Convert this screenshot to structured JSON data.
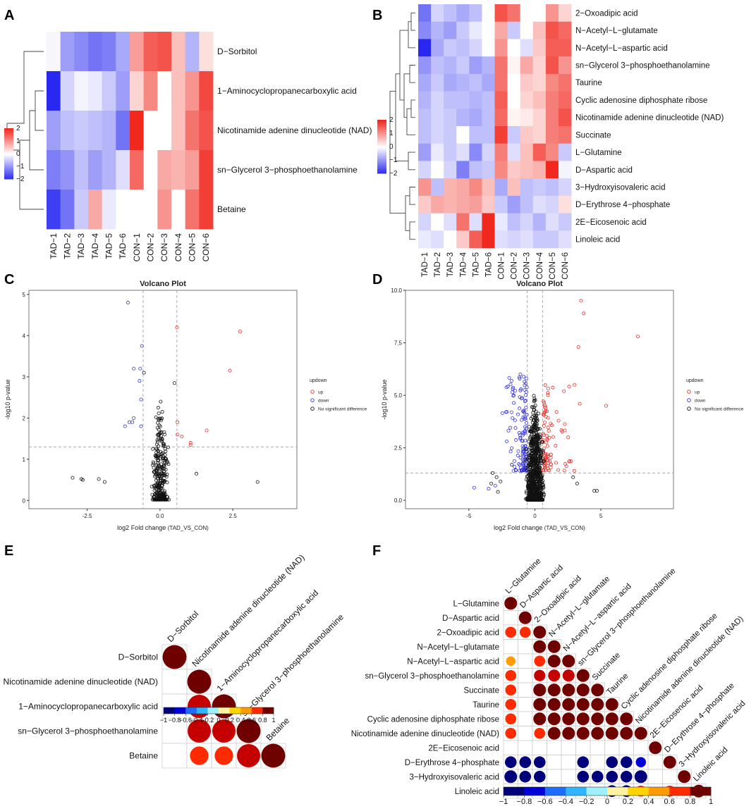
{
  "panel_labels": [
    "A",
    "B",
    "C",
    "D",
    "E",
    "F"
  ],
  "chart_data": [
    {
      "id": "A",
      "type": "heatmap",
      "columns": [
        "TAD−1",
        "TAD−2",
        "TAD−3",
        "TAD−4",
        "TAD−5",
        "TAD−6",
        "CON−1",
        "CON−2",
        "CON−3",
        "CON−4",
        "CON−5",
        "CON−6"
      ],
      "rows": [
        "D−Sorbitol",
        "1−Aminocyclopropanecarboxylic acid",
        "Nicotinamide adenine dinucleotide (NAD)",
        "sn−Glycerol 3−phosphoethanolamine",
        "Betaine"
      ],
      "values": [
        [
          null,
          -0.9,
          -1.1,
          -1.3,
          -1.2,
          -0.8,
          0.9,
          1.5,
          1.6,
          0.6,
          -0.7,
          0.3
        ],
        [
          -2.2,
          -0.4,
          -0.1,
          -0.2,
          -0.5,
          -0.9,
          0.4,
          1.1,
          0.0,
          0.6,
          1.0,
          1.7
        ],
        [
          -0.9,
          -0.6,
          -0.5,
          -0.6,
          -0.7,
          -1.3,
          2.0,
          0.0,
          0.0,
          0.6,
          1.3,
          1.6
        ],
        [
          -1.2,
          -1.0,
          -0.6,
          -0.9,
          -0.7,
          -0.3,
          1.4,
          0.0,
          0.8,
          0.7,
          0.9,
          1.8
        ],
        [
          -1.8,
          -1.3,
          -0.5,
          0.8,
          -0.2,
          0.0,
          0.0,
          0.0,
          1.0,
          0.0,
          1.3,
          1.8
        ]
      ],
      "legend_ticks": [
        "2",
        "1",
        "0",
        "−1",
        "−2"
      ],
      "range": [
        -2,
        2
      ]
    },
    {
      "id": "B",
      "type": "heatmap",
      "columns": [
        "TAD−1",
        "TAD−2",
        "TAD−3",
        "TAD−4",
        "TAD−5",
        "TAD−6",
        "CON−1",
        "CON−2",
        "CON−3",
        "CON−4",
        "CON−5",
        "CON−6"
      ],
      "rows": [
        "2−Oxoadipic acid",
        "N−Acetyl−L−glutamate",
        "N−Acetyl−L−aspartic acid",
        "sn−Glycerol 3−phosphoethanolamine",
        "Taurine",
        "Cyclic adenosine diphosphate ribose",
        "Nicotinamide adenine dinucleotide (NAD)",
        "Succinate",
        "L−Glutamine",
        "D−Aspartic acid",
        "3−Hydroxyisovaleric acid",
        "D−Erythrose 4−phosphate",
        "2E−Eicosenoic acid",
        "Linoleic acid"
      ],
      "values": [
        [
          -1.3,
          -0.4,
          -0.6,
          -0.8,
          -0.6,
          0.0,
          1.6,
          1.3,
          0.0,
          0.0,
          1.0,
          0.4
        ],
        [
          -1.1,
          -0.7,
          -0.9,
          -0.5,
          -0.2,
          0.0,
          0.8,
          -0.5,
          0.0,
          0.6,
          1.6,
          1.4
        ],
        [
          -2.0,
          -0.8,
          -0.5,
          -0.6,
          -0.4,
          0.0,
          1.0,
          0.0,
          -0.3,
          0.5,
          1.5,
          1.5
        ],
        [
          -1.0,
          -0.6,
          -0.7,
          -0.5,
          -0.9,
          -0.7,
          1.3,
          0.1,
          0.8,
          0.4,
          1.6,
          1.0
        ],
        [
          -0.8,
          -0.5,
          -0.8,
          -0.7,
          -0.6,
          -0.8,
          1.3,
          0.0,
          0.5,
          0.4,
          1.1,
          1.3
        ],
        [
          -0.7,
          -0.4,
          -0.6,
          -0.6,
          -0.7,
          -0.6,
          1.5,
          0.0,
          0.4,
          0.6,
          1.2,
          1.4
        ],
        [
          -0.6,
          -0.4,
          -0.5,
          -0.7,
          -0.8,
          -0.6,
          1.4,
          0.1,
          0.2,
          0.4,
          1.2,
          1.6
        ],
        [
          -0.6,
          -0.4,
          -0.5,
          0.0,
          -0.6,
          -0.6,
          1.8,
          -0.5,
          0.5,
          0.4,
          1.2,
          1.3
        ],
        [
          -0.9,
          -0.2,
          -0.5,
          -0.3,
          -1.1,
          -0.4,
          1.2,
          -0.3,
          0.6,
          1.5,
          1.1,
          -0.5
        ],
        [
          -0.4,
          0.0,
          -0.4,
          -1.2,
          -0.6,
          -0.5,
          1.1,
          0.5,
          0.6,
          0.7,
          2.0,
          -0.1
        ],
        [
          1.0,
          -0.6,
          0.7,
          0.8,
          1.1,
          0.6,
          -0.8,
          0.6,
          -0.6,
          -0.5,
          -0.6,
          -0.4
        ],
        [
          0.5,
          0.8,
          0.7,
          0.8,
          0.9,
          0.5,
          -0.5,
          -0.9,
          -0.6,
          -0.3,
          -0.4,
          0.3
        ],
        [
          -0.4,
          0.0,
          -0.3,
          1.3,
          -0.3,
          2.0,
          -0.2,
          -0.6,
          -0.4,
          -0.7,
          -0.3,
          -0.5
        ],
        [
          -0.2,
          -0.3,
          0.0,
          0.5,
          1.5,
          2.0,
          -0.3,
          -0.4,
          -0.3,
          -0.5,
          -0.5,
          -0.3
        ]
      ],
      "legend_ticks": [
        "2",
        "1",
        "0",
        "−1",
        "−2"
      ],
      "range": [
        -2,
        2
      ]
    },
    {
      "id": "C",
      "type": "scatter",
      "title": "Volcano Plot",
      "xlabel": "log2 Fold change",
      "xlabel_suffix": "(TAD_VS_CON)",
      "ylabel": "-log10 p-value",
      "xlim": [
        -4.5,
        4.7
      ],
      "ylim": [
        -0.2,
        5.1
      ],
      "xticks": [
        -2.5,
        0.0,
        2.5
      ],
      "xtick_labels": [
        "-2.5",
        "0.0",
        "2.5"
      ],
      "yticks": [
        0,
        1,
        2,
        3,
        4,
        5
      ],
      "ytick_labels": [
        "0",
        "1",
        "2",
        "3",
        "4",
        "5"
      ],
      "vlines": [
        -0.58,
        0.58
      ],
      "hline": 1.3,
      "legend": {
        "title": "updown",
        "entries": [
          "up",
          "down",
          "No significant difference"
        ]
      },
      "series": [
        {
          "name": "up",
          "color": "#e8302a",
          "points": [
            [
              0.58,
              4.2
            ],
            [
              2.75,
              4.1
            ],
            [
              2.4,
              3.15
            ],
            [
              0.6,
              1.9
            ],
            [
              1.6,
              1.7
            ],
            [
              0.6,
              1.6
            ],
            [
              0.75,
              1.55
            ],
            [
              1.05,
              1.4
            ],
            [
              1.05,
              1.35
            ]
          ]
        },
        {
          "name": "down",
          "color": "#3535d8",
          "points": [
            [
              -1.1,
              4.8
            ],
            [
              -0.62,
              3.75
            ],
            [
              -0.9,
              3.2
            ],
            [
              -0.68,
              3.2
            ],
            [
              -0.7,
              2.9
            ],
            [
              -0.65,
              2.45
            ],
            [
              -0.9,
              2.0
            ],
            [
              -1.05,
              1.9
            ],
            [
              -0.95,
              1.9
            ],
            [
              -0.65,
              1.8
            ],
            [
              -1.2,
              1.8
            ]
          ]
        },
        {
          "name": "No significant difference",
          "color": "#111111",
          "count": 320,
          "x_spread": 0.3,
          "y_max": 2.6,
          "extra": [
            [
              -3.0,
              0.55
            ],
            [
              -2.7,
              0.52
            ],
            [
              -2.65,
              0.5
            ],
            [
              -2.1,
              0.52
            ],
            [
              -1.9,
              0.45
            ],
            [
              3.35,
              0.45
            ],
            [
              1.25,
              0.65
            ],
            [
              0.5,
              2.85
            ],
            [
              -0.55,
              3.1
            ]
          ]
        }
      ]
    },
    {
      "id": "D",
      "type": "scatter",
      "title": "Volcano Plot",
      "xlabel": "log2 Fold change",
      "xlabel_suffix": "(TAD_VS_CON)",
      "ylabel": "-log10 p-value",
      "xlim": [
        -9.8,
        10.5
      ],
      "ylim": [
        -0.4,
        10.0
      ],
      "xticks": [
        -5,
        0,
        5
      ],
      "xtick_labels": [
        "-5",
        "0",
        "5"
      ],
      "yticks": [
        0,
        2.5,
        5,
        7.5,
        10
      ],
      "ytick_labels": [
        "0.0",
        "2.5",
        "5.0",
        "7.5",
        "10.0"
      ],
      "vlines": [
        -0.58,
        0.58
      ],
      "hline": 1.3,
      "legend": {
        "title": "updown",
        "entries": [
          "up",
          "down",
          "No significant difference"
        ]
      },
      "series": [
        {
          "name": "up",
          "color": "#e8302a",
          "count": 90,
          "x_range": [
            0.6,
            3.2
          ],
          "y_range": [
            1.4,
            5.6
          ],
          "extra": [
            [
              3.5,
              9.5
            ],
            [
              3.7,
              8.9
            ],
            [
              3.3,
              7.3
            ],
            [
              7.8,
              7.8
            ],
            [
              5.4,
              4.5
            ],
            [
              3.4,
              4.6
            ],
            [
              3.0,
              5.5
            ],
            [
              2.2,
              5.2
            ]
          ]
        },
        {
          "name": "down",
          "color": "#3535d8",
          "count": 130,
          "x_range": [
            -2.5,
            -0.6
          ],
          "y_range": [
            1.4,
            5.9
          ],
          "extra": [
            [
              -4.6,
              0.6
            ],
            [
              -3.5,
              0.55
            ],
            [
              -3.0,
              0.7
            ],
            [
              -1.1,
              6.0
            ],
            [
              -1.6,
              5.0
            ]
          ]
        },
        {
          "name": "No significant difference",
          "color": "#111111",
          "count": 900,
          "x_spread": 0.7,
          "y_max": 5.2,
          "extra": [
            [
              -3.2,
              1.3
            ],
            [
              -2.9,
              1.1
            ],
            [
              -2.6,
              0.9
            ],
            [
              -2.8,
              0.4
            ],
            [
              2.9,
              1.1
            ],
            [
              3.2,
              0.8
            ],
            [
              4.5,
              0.45
            ],
            [
              4.7,
              0.45
            ],
            [
              -3.3,
              0.8
            ]
          ]
        }
      ]
    },
    {
      "id": "E",
      "type": "heatmap",
      "subtype": "correlation-lower-triangle",
      "labels": [
        "D−Sorbitol",
        "Nicotinamide adenine dinucleotide (NAD)",
        "1−Aminocyclopropanecarboxylic acid",
        "sn−Glycerol 3−phosphoethanolamine",
        "Betaine"
      ],
      "matrix": [
        [
          1.0
        ],
        [
          null,
          1.0
        ],
        [
          null,
          0.95,
          1.0
        ],
        [
          null,
          0.95,
          0.95,
          1.0
        ],
        [
          null,
          0.6,
          0.6,
          0.95,
          1.0
        ]
      ],
      "legend_ticks": [
        "−1",
        "−0.8",
        "−0.6",
        "−0.4",
        "−0.2",
        "0",
        "0.2",
        "0.4",
        "0.6",
        "0.8",
        "1"
      ],
      "range": [
        -1,
        1
      ]
    },
    {
      "id": "F",
      "type": "heatmap",
      "subtype": "correlation-lower-triangle",
      "labels": [
        "L−Glutamine",
        "D−Aspartic acid",
        "2−Oxoadipic acid",
        "N−Acetyl−L−glutamate",
        "N−Acetyl−L−aspartic acid",
        "sn−Glycerol 3−phosphoethanolamine",
        "Succinate",
        "Taurine",
        "Cyclic adenosine diphosphate ribose",
        "Nicotinamide adenine dinucleotide (NAD)",
        "2E−Eicosenoic acid",
        "D−Erythrose 4−phosphate",
        "3−Hydroxyisovaleric acid",
        "Linoleic acid"
      ],
      "matrix": [
        [
          1
        ],
        [
          null,
          1
        ],
        [
          0.75,
          0.75,
          1
        ],
        [
          null,
          null,
          1,
          1
        ],
        [
          0.55,
          null,
          0.75,
          1,
          1
        ],
        [
          0.75,
          null,
          0.8,
          0.9,
          0.9,
          1
        ],
        [
          0.75,
          null,
          1,
          1,
          1,
          1,
          1
        ],
        [
          0.75,
          null,
          1,
          1,
          1,
          1,
          1,
          1
        ],
        [
          0.75,
          null,
          1,
          1,
          1,
          1,
          1,
          1,
          1
        ],
        [
          0.75,
          null,
          0.75,
          1,
          1,
          1,
          1,
          1,
          1,
          1
        ],
        [
          null,
          null,
          null,
          null,
          null,
          null,
          null,
          null,
          null,
          null,
          1
        ],
        [
          -0.85,
          -0.85,
          -0.85,
          null,
          null,
          -0.85,
          null,
          -0.85,
          -0.85,
          -0.65,
          null,
          1
        ],
        [
          -1,
          -0.85,
          -0.85,
          null,
          null,
          -0.85,
          -0.85,
          -0.85,
          -0.85,
          -1,
          null,
          null,
          1
        ],
        [
          null,
          null,
          null,
          null,
          null,
          null,
          null,
          -0.85,
          -0.85,
          0.75,
          null,
          0.75,
          null,
          1
        ]
      ],
      "legend_ticks": [
        "−1",
        "−0.8",
        "−0.6",
        "−0.4",
        "−0.2",
        "0",
        "0.2",
        "0.4",
        "0.6",
        "0.8",
        "1"
      ],
      "range": [
        -1,
        1
      ]
    }
  ]
}
